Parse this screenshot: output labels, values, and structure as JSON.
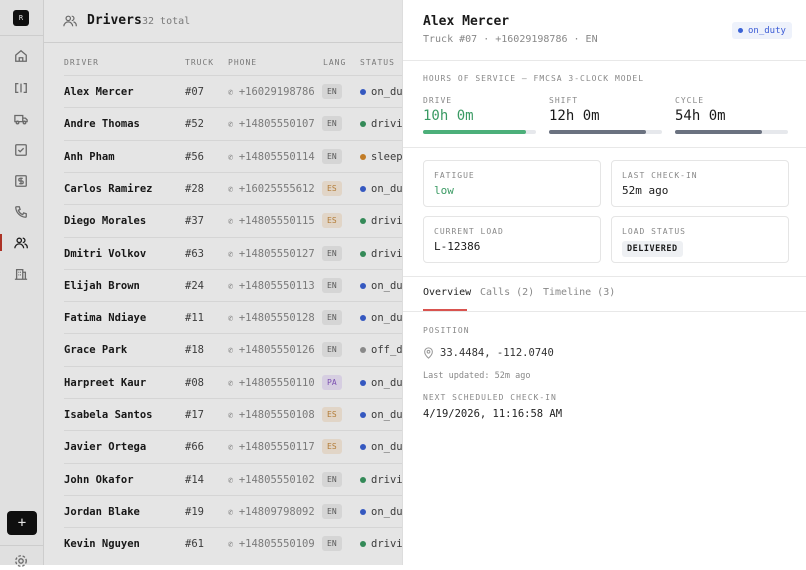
{
  "sidebar": {
    "logo": "R",
    "items": [
      "home",
      "board",
      "truck",
      "tasks",
      "billing",
      "calls",
      "drivers",
      "reports"
    ],
    "active": "drivers"
  },
  "header": {
    "title": "Drivers",
    "count": "32 total"
  },
  "table": {
    "columns": [
      "DRIVER",
      "TRUCK",
      "PHONE",
      "LANG",
      "STATUS"
    ],
    "rows": [
      {
        "name": "Alex Mercer",
        "truck": "#07",
        "phone": "+16029198786",
        "lang": "EN",
        "status": "on_duty"
      },
      {
        "name": "Andre Thomas",
        "truck": "#52",
        "phone": "+14805550107",
        "lang": "EN",
        "status": "driving"
      },
      {
        "name": "Anh Pham",
        "truck": "#56",
        "phone": "+14805550114",
        "lang": "EN",
        "status": "sleeper"
      },
      {
        "name": "Carlos Ramirez",
        "truck": "#28",
        "phone": "+16025555612",
        "lang": "ES",
        "status": "on_duty"
      },
      {
        "name": "Diego Morales",
        "truck": "#37",
        "phone": "+14805550115",
        "lang": "ES",
        "status": "driving"
      },
      {
        "name": "Dmitri Volkov",
        "truck": "#63",
        "phone": "+14805550127",
        "lang": "EN",
        "status": "driving"
      },
      {
        "name": "Elijah Brown",
        "truck": "#24",
        "phone": "+14805550113",
        "lang": "EN",
        "status": "on_duty"
      },
      {
        "name": "Fatima Ndiaye",
        "truck": "#11",
        "phone": "+14805550128",
        "lang": "EN",
        "status": "on_duty"
      },
      {
        "name": "Grace Park",
        "truck": "#18",
        "phone": "+14805550126",
        "lang": "EN",
        "status": "off_duty"
      },
      {
        "name": "Harpreet Kaur",
        "truck": "#08",
        "phone": "+14805550110",
        "lang": "PA",
        "status": "on_duty"
      },
      {
        "name": "Isabela Santos",
        "truck": "#17",
        "phone": "+14805550108",
        "lang": "ES",
        "status": "on_duty"
      },
      {
        "name": "Javier Ortega",
        "truck": "#66",
        "phone": "+14805550117",
        "lang": "ES",
        "status": "on_duty"
      },
      {
        "name": "John Okafor",
        "truck": "#14",
        "phone": "+14805550102",
        "lang": "EN",
        "status": "driving"
      },
      {
        "name": "Jordan Blake",
        "truck": "#19",
        "phone": "+14809798092",
        "lang": "EN",
        "status": "on_duty"
      },
      {
        "name": "Kevin Nguyen",
        "truck": "#61",
        "phone": "+14805550109",
        "lang": "EN",
        "status": "driving"
      }
    ]
  },
  "status_colors": {
    "on_duty": "#3b63d6",
    "driving": "#3a9a63",
    "sleeper": "#d98b2b",
    "off_duty": "#999999"
  },
  "panel": {
    "name": "Alex Mercer",
    "subtitle": "Truck #07 · +16029198786 · EN",
    "status": "on_duty",
    "hos": {
      "title": "HOURS OF SERVICE — FMCSA 3-CLOCK MODEL",
      "clocks": [
        {
          "label": "DRIVE",
          "value": "10h 0m",
          "fill": 0.91,
          "color": "#4caf7a"
        },
        {
          "label": "SHIFT",
          "value": "12h 0m",
          "fill": 0.86,
          "color": "#6b7280"
        },
        {
          "label": "CYCLE",
          "value": "54h 0m",
          "fill": 0.77,
          "color": "#6b7280"
        }
      ]
    },
    "cards": {
      "fatigue_label": "FATIGUE",
      "fatigue": "low",
      "checkin_label": "LAST CHECK-IN",
      "checkin": "52m ago",
      "load_label": "CURRENT LOAD",
      "load": "L-12386",
      "load_status_label": "LOAD STATUS",
      "load_status": "DELIVERED"
    },
    "tabs": [
      "Overview",
      "Calls (2)",
      "Timeline (3)"
    ],
    "overview": {
      "position_label": "POSITION",
      "position": "33.4484, -112.0740",
      "last_updated": "Last updated: 52m ago",
      "next_label": "NEXT SCHEDULED CHECK-IN",
      "next": "4/19/2026, 11:16:58 AM"
    }
  }
}
